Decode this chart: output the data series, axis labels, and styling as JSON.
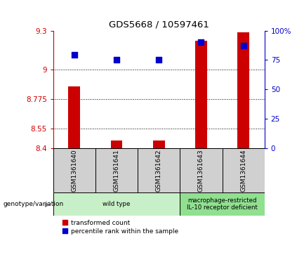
{
  "title": "GDS5668 / 10597461",
  "samples": [
    "GSM1361640",
    "GSM1361641",
    "GSM1361642",
    "GSM1361643",
    "GSM1361644"
  ],
  "red_values": [
    8.87,
    8.455,
    8.455,
    9.22,
    9.285
  ],
  "blue_values": [
    9.115,
    9.075,
    9.075,
    9.21,
    9.185
  ],
  "ylim_left": [
    8.4,
    9.3
  ],
  "ylim_right": [
    0,
    100
  ],
  "yticks_left": [
    8.4,
    8.55,
    8.775,
    9.0,
    9.3
  ],
  "ytick_labels_left": [
    "8.4",
    "8.55",
    "8.775",
    "9",
    "9.3"
  ],
  "yticks_right": [
    0,
    25,
    50,
    75,
    100
  ],
  "ytick_labels_right": [
    "0",
    "25",
    "50",
    "75",
    "100%"
  ],
  "hlines": [
    9.0,
    8.775,
    8.55
  ],
  "group_info": [
    {
      "indices": [
        0,
        1,
        2
      ],
      "label": "wild type",
      "color": "#c8f0c8"
    },
    {
      "indices": [
        3,
        4
      ],
      "label": "macrophage-restricted\nIL-10 receptor deficient",
      "color": "#90e090"
    }
  ],
  "group_label_prefix": "genotype/variation",
  "legend_red": "transformed count",
  "legend_blue": "percentile rank within the sample",
  "bar_color": "#cc0000",
  "dot_color": "#0000cc",
  "bar_width": 0.28,
  "dot_size": 30,
  "plot_bg": "#ffffff",
  "axis_color_left": "#cc0000",
  "axis_color_right": "#0000cc",
  "label_bg": "#d0d0d0",
  "spine_color": "#000000"
}
